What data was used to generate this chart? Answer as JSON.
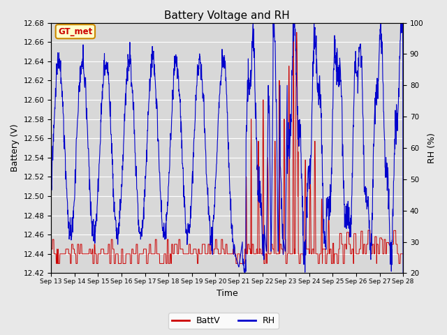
{
  "title": "Battery Voltage and RH",
  "xlabel": "Time",
  "ylabel_left": "Battery (V)",
  "ylabel_right": "RH (%)",
  "annotation": "GT_met",
  "ylim_left": [
    12.42,
    12.68
  ],
  "ylim_right": [
    20,
    100
  ],
  "yticks_left": [
    12.42,
    12.44,
    12.46,
    12.48,
    12.5,
    12.52,
    12.54,
    12.56,
    12.58,
    12.6,
    12.62,
    12.64,
    12.66,
    12.68
  ],
  "yticks_right": [
    20,
    30,
    40,
    50,
    60,
    70,
    80,
    90,
    100
  ],
  "xtick_labels": [
    "Sep 13",
    "Sep 14",
    "Sep 15",
    "Sep 16",
    "Sep 17",
    "Sep 18",
    "Sep 19",
    "Sep 20",
    "Sep 21",
    "Sep 22",
    "Sep 23",
    "Sep 24",
    "Sep 25",
    "Sep 26",
    "Sep 27",
    "Sep 28"
  ],
  "batt_color": "#cc0000",
  "rh_color": "#0000cc",
  "bg_color": "#e8e8e8",
  "plot_bg_color": "#d8d8d8",
  "legend_batt": "BattV",
  "legend_rh": "RH",
  "annotation_bg": "#ffffcc",
  "annotation_border": "#cc8800",
  "annotation_text_color": "#cc0000",
  "grid_color": "#ffffff",
  "title_fontsize": 11,
  "label_fontsize": 9,
  "tick_fontsize": 7.5,
  "xtick_fontsize": 6.5
}
